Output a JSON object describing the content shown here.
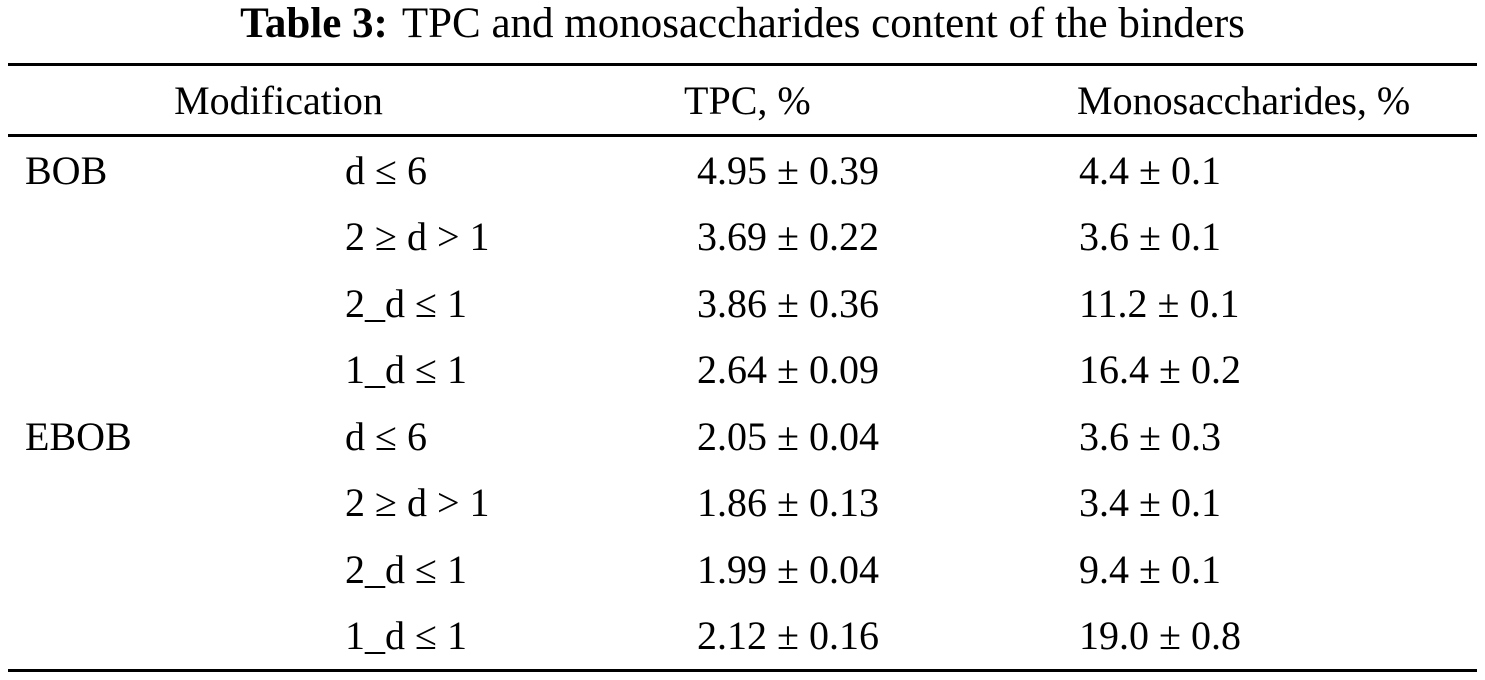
{
  "caption": {
    "label": "Table 3:",
    "title": "TPC and monosaccharides content of the binders"
  },
  "table": {
    "headers": {
      "modification": "Modification",
      "tpc": "TPC, %",
      "monosaccharides": "Monosaccharides, %"
    },
    "rows": [
      {
        "group": "BOB",
        "condition": "d ≤ 6",
        "tpc": "4.95 ± 0.39",
        "mono": "4.4 ± 0.1"
      },
      {
        "group": "",
        "condition": "2 ≥ d > 1",
        "tpc": "3.69 ± 0.22",
        "mono": "3.6 ± 0.1"
      },
      {
        "group": "",
        "condition": "2_d ≤ 1",
        "tpc": "3.86 ± 0.36",
        "mono": "11.2 ± 0.1"
      },
      {
        "group": "",
        "condition": "1_d ≤ 1",
        "tpc": "2.64 ± 0.09",
        "mono": "16.4 ± 0.2"
      },
      {
        "group": "EBOB",
        "condition": "d ≤ 6",
        "tpc": "2.05 ± 0.04",
        "mono": "3.6 ± 0.3"
      },
      {
        "group": "",
        "condition": "2 ≥ d > 1",
        "tpc": "1.86 ± 0.13",
        "mono": "3.4 ± 0.1"
      },
      {
        "group": "",
        "condition": "2_d ≤ 1",
        "tpc": "1.99 ± 0.04",
        "mono": "9.4 ± 0.1"
      },
      {
        "group": "",
        "condition": "1_d ≤ 1",
        "tpc": "2.12 ± 0.16",
        "mono": "19.0 ± 0.8"
      }
    ]
  }
}
